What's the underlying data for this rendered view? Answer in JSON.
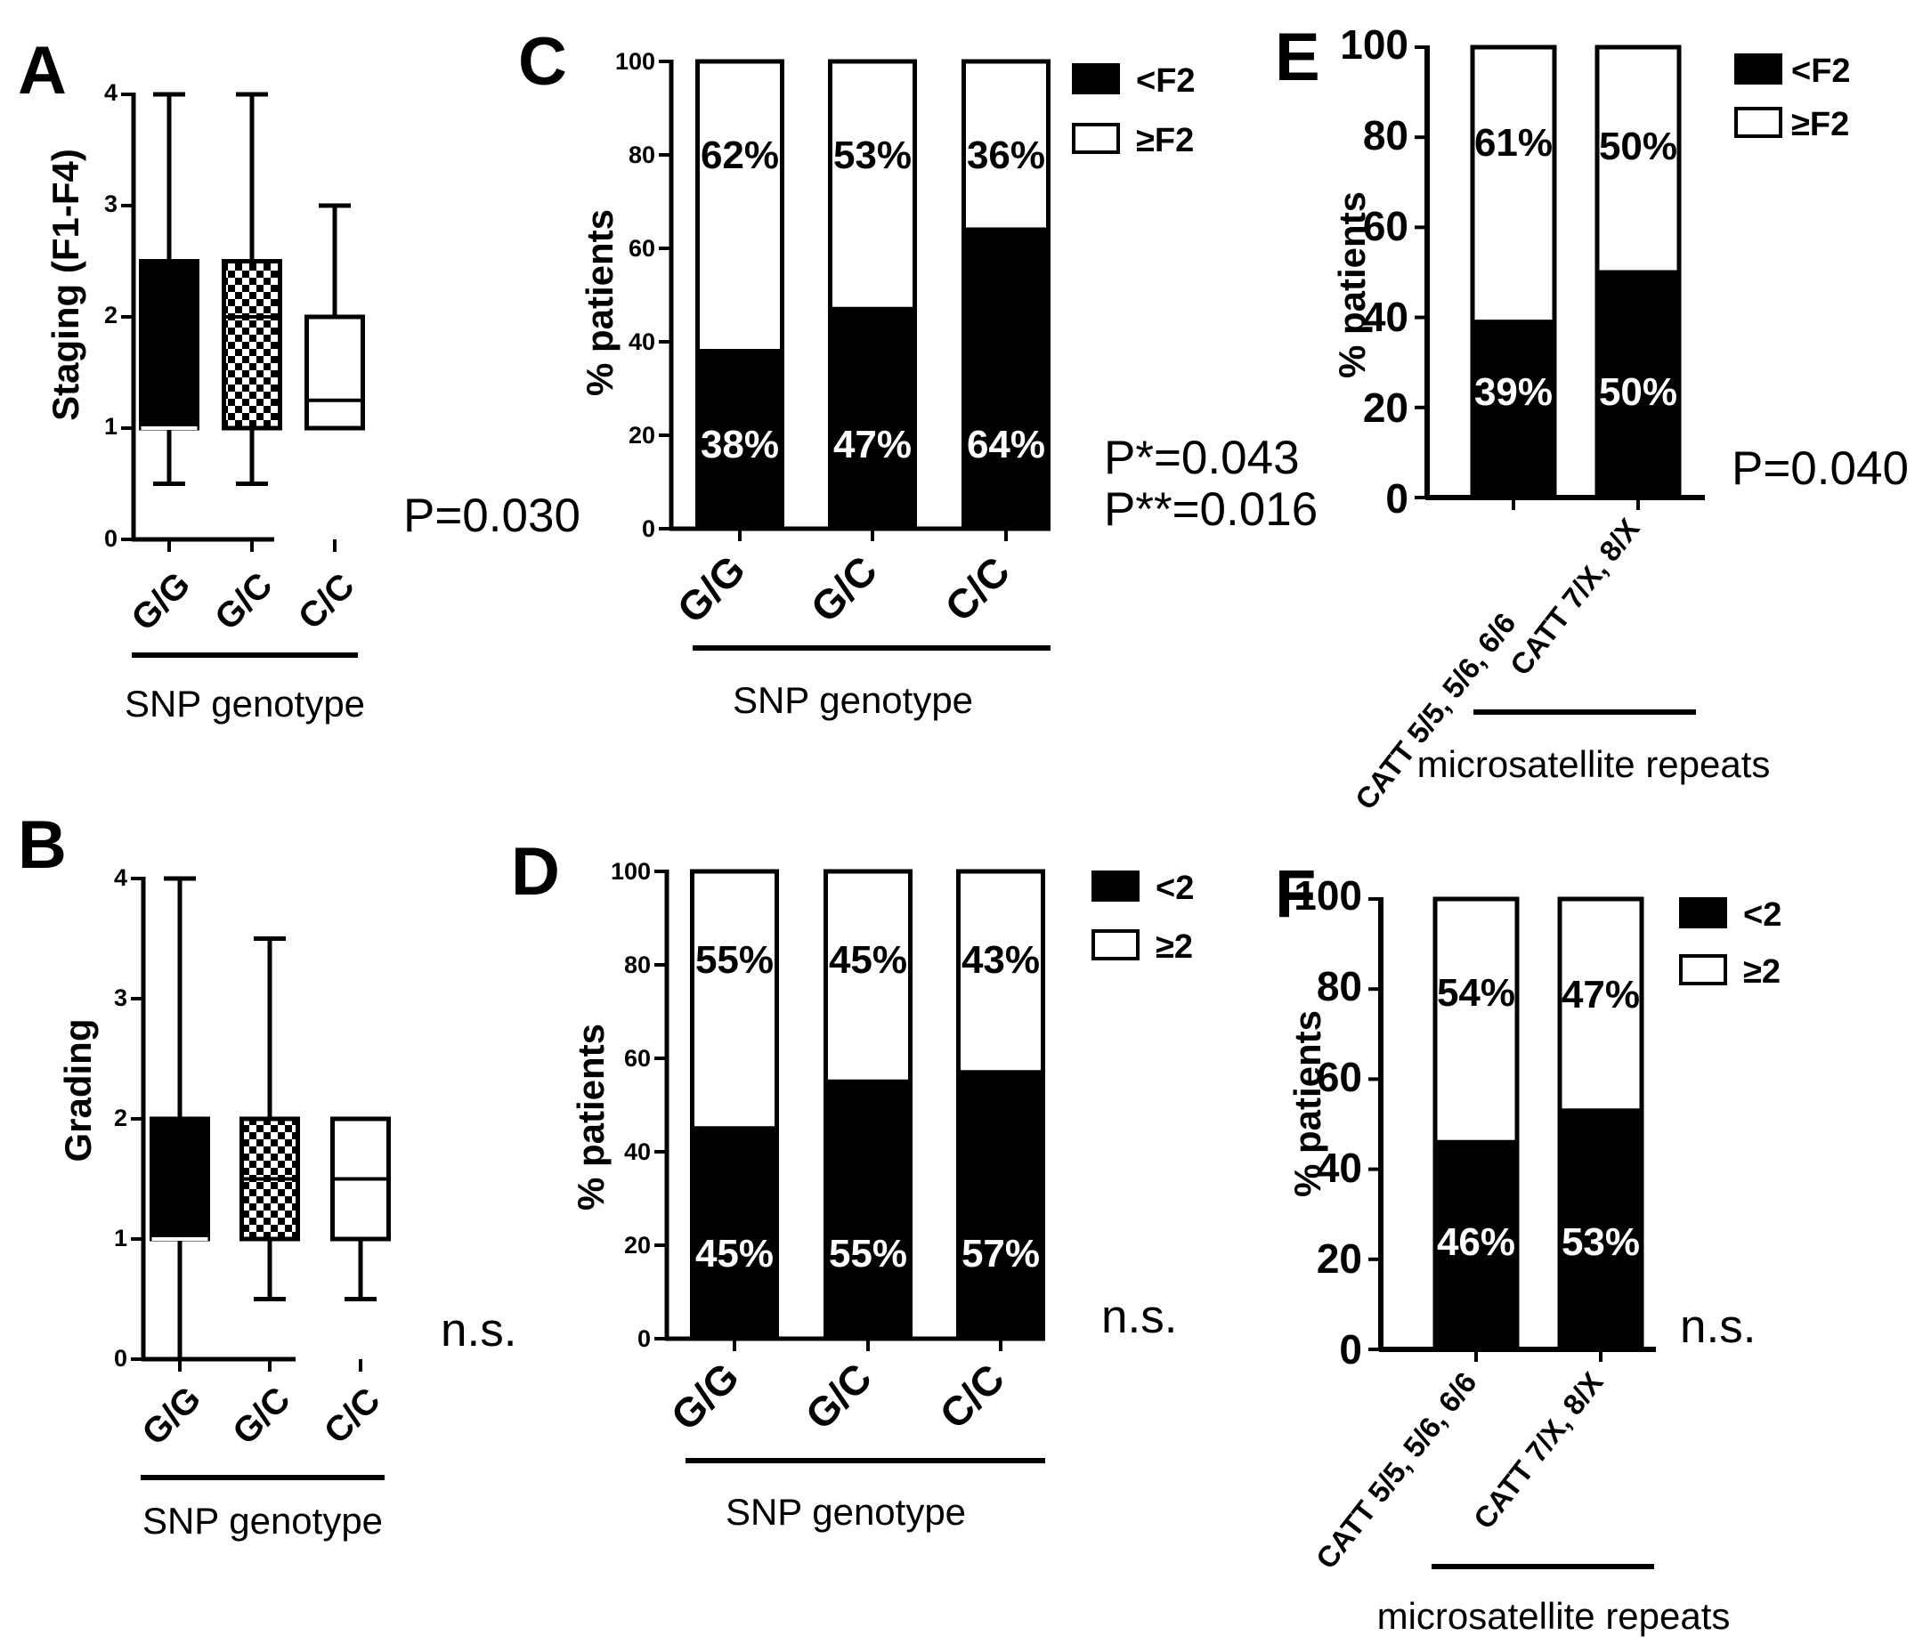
{
  "chart_data": [
    {
      "id": "A",
      "panel_label": "A",
      "type": "boxplot",
      "ylabel": "Staging (F1-F4)",
      "xlabel": "SNP genotype",
      "ylim": [
        0,
        4
      ],
      "yticks": [
        "0",
        "1",
        "2",
        "3",
        "4"
      ],
      "categories": [
        "G/G",
        "G/C",
        "C/C"
      ],
      "fills": [
        "solid",
        "checkered",
        "open"
      ],
      "boxes": [
        {
          "min": 0.5,
          "q1": 1,
          "median": 1,
          "q3": 2.5,
          "max": 4
        },
        {
          "min": 0.5,
          "q1": 1,
          "median": 2,
          "q3": 2.5,
          "max": 4
        },
        {
          "min": 1,
          "q1": 1,
          "median": 1.25,
          "q3": 2,
          "max": 3
        }
      ],
      "stat": "P=0.030"
    },
    {
      "id": "B",
      "panel_label": "B",
      "type": "boxplot",
      "ylabel": "Grading",
      "xlabel": "SNP genotype",
      "ylim": [
        0,
        4
      ],
      "yticks": [
        "0",
        "1",
        "2",
        "3",
        "4"
      ],
      "categories": [
        "G/G",
        "G/C",
        "C/C"
      ],
      "fills": [
        "solid",
        "checkered",
        "open"
      ],
      "boxes": [
        {
          "min": 0,
          "q1": 1,
          "median": 1,
          "q3": 2,
          "max": 4
        },
        {
          "min": 0.5,
          "q1": 1,
          "median": 1.5,
          "q3": 2,
          "max": 3.5
        },
        {
          "min": 0.5,
          "q1": 1,
          "median": 1.5,
          "q3": 2,
          "max": 2
        }
      ],
      "stat": "n.s."
    },
    {
      "id": "C",
      "panel_label": "C",
      "type": "stacked-bar",
      "ylabel": "% patients",
      "xlabel": "SNP genotype",
      "ylim": [
        0,
        100
      ],
      "yticks": [
        "0",
        "20",
        "40",
        "60",
        "80",
        "100"
      ],
      "categories": [
        "G/G",
        "G/C",
        "C/C"
      ],
      "series": [
        {
          "name": "<F2",
          "color": "#000000",
          "values": [
            38,
            47,
            64
          ],
          "labels": [
            "38%",
            "47%",
            "64%"
          ]
        },
        {
          "name": "≥F2",
          "color": "#ffffff",
          "values": [
            62,
            53,
            36
          ],
          "labels": [
            "62%",
            "53%",
            "36%"
          ]
        }
      ],
      "stat": [
        "P*=0.043",
        "P**=0.016"
      ]
    },
    {
      "id": "D",
      "panel_label": "D",
      "type": "stacked-bar",
      "ylabel": "% patients",
      "xlabel": "SNP genotype",
      "ylim": [
        0,
        100
      ],
      "yticks": [
        "0",
        "20",
        "40",
        "60",
        "80",
        "100"
      ],
      "categories": [
        "G/G",
        "G/C",
        "C/C"
      ],
      "series": [
        {
          "name": "<2",
          "color": "#000000",
          "values": [
            45,
            55,
            57
          ],
          "labels": [
            "45%",
            "55%",
            "57%"
          ]
        },
        {
          "name": "≥2",
          "color": "#ffffff",
          "values": [
            55,
            45,
            43
          ],
          "labels": [
            "55%",
            "45%",
            "43%"
          ]
        }
      ],
      "stat": "n.s."
    },
    {
      "id": "E",
      "panel_label": "E",
      "type": "stacked-bar",
      "ylabel": "% patients",
      "xlabel": "microsatellite repeats",
      "ylim": [
        0,
        100
      ],
      "yticks": [
        "0",
        "20",
        "40",
        "60",
        "80",
        "100"
      ],
      "categories": [
        "CATT 5/5, 5/6, 6/6",
        "CATT 7/X, 8/X"
      ],
      "series": [
        {
          "name": "<F2",
          "color": "#000000",
          "values": [
            39,
            50
          ],
          "labels": [
            "39%",
            "50%"
          ]
        },
        {
          "name": "≥F2",
          "color": "#ffffff",
          "values": [
            61,
            50
          ],
          "labels": [
            "61%",
            "50%"
          ]
        }
      ],
      "stat": "P=0.040"
    },
    {
      "id": "F",
      "panel_label": "F",
      "type": "stacked-bar",
      "ylabel": "% patients",
      "xlabel": "microsatellite repeats",
      "ylim": [
        0,
        100
      ],
      "yticks": [
        "0",
        "20",
        "40",
        "60",
        "80",
        "100"
      ],
      "categories": [
        "CATT 5/5, 5/6, 6/6",
        "CATT 7/X, 8/X"
      ],
      "series": [
        {
          "name": "<2",
          "color": "#000000",
          "values": [
            46,
            53
          ],
          "labels": [
            "46%",
            "53%"
          ]
        },
        {
          "name": "≥2",
          "color": "#ffffff",
          "values": [
            54,
            47
          ],
          "labels": [
            "54%",
            "47%"
          ]
        }
      ],
      "stat": "n.s."
    }
  ]
}
